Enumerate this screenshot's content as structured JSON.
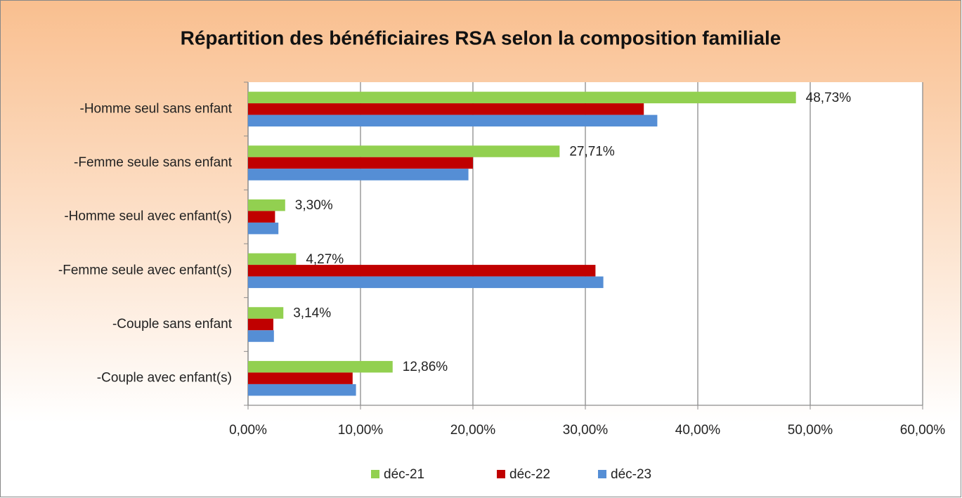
{
  "chart_data": {
    "type": "bar",
    "orientation": "horizontal",
    "title": "Répartition des bénéficiaires RSA selon la composition familiale",
    "categories": [
      "-Homme seul sans enfant",
      "-Femme seule sans enfant",
      "-Homme seul avec enfant(s)",
      "-Femme seule avec enfant(s)",
      "-Couple sans enfant",
      "-Couple avec enfant(s)"
    ],
    "series": [
      {
        "name": "déc-21",
        "color": "#92d050",
        "values": [
          48.73,
          27.71,
          3.3,
          4.27,
          3.14,
          12.86
        ],
        "value_labels": [
          "48,73%",
          "27,71%",
          "3,30%",
          "4,27%",
          "3,14%",
          "12,86%"
        ]
      },
      {
        "name": "déc-22",
        "color": "#c00000",
        "values": [
          35.2,
          20.0,
          2.4,
          30.9,
          2.25,
          9.3
        ]
      },
      {
        "name": "déc-23",
        "color": "#558ed5",
        "values": [
          36.4,
          19.6,
          2.7,
          31.6,
          2.3,
          9.6
        ]
      }
    ],
    "xlim": [
      0,
      60
    ],
    "xticks": [
      {
        "value": 0,
        "label": "0,00%"
      },
      {
        "value": 10,
        "label": "10,00%"
      },
      {
        "value": 20,
        "label": "20,00%"
      },
      {
        "value": 30,
        "label": "30,00%"
      },
      {
        "value": 40,
        "label": "40,00%"
      },
      {
        "value": 50,
        "label": "50,00%"
      },
      {
        "value": 60,
        "label": "60,00%"
      }
    ],
    "grid": true,
    "legend": "bottom"
  }
}
